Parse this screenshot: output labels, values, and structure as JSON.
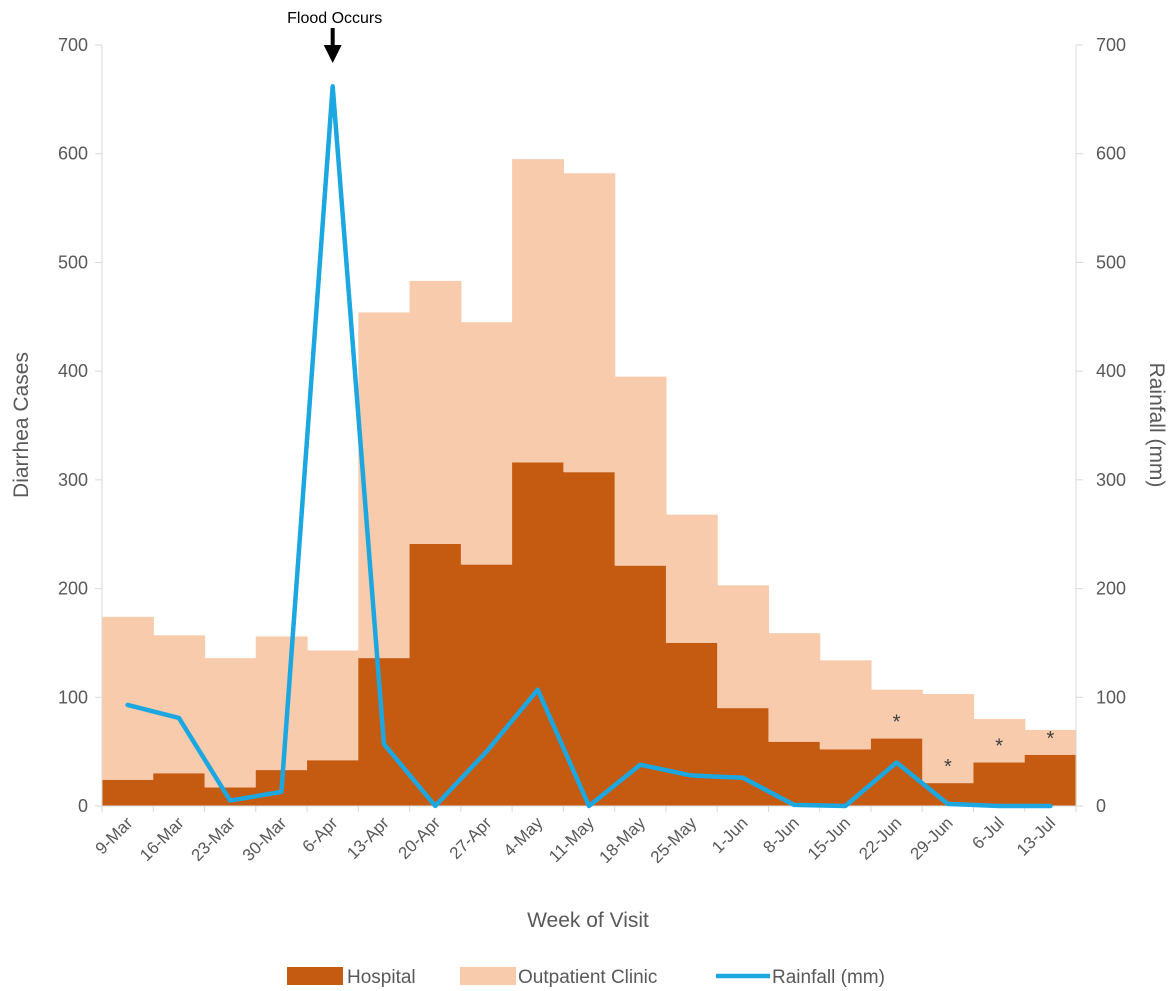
{
  "chart_data": {
    "type": "bar",
    "stacked": true,
    "categories": [
      "9-Mar",
      "16-Mar",
      "23-Mar",
      "30-Mar",
      "6-Apr",
      "13-Apr",
      "20-Apr",
      "27-Apr",
      "4-May",
      "11-May",
      "18-May",
      "25-May",
      "1-Jun",
      "8-Jun",
      "15-Jun",
      "22-Jun",
      "29-Jun",
      "6-Jul",
      "13-Jul"
    ],
    "series": [
      {
        "name": "Hospital",
        "type": "bar",
        "axis": "left",
        "color": "#C55A11",
        "values": [
          24,
          30,
          17,
          33,
          42,
          136,
          241,
          222,
          316,
          307,
          221,
          150,
          90,
          59,
          52,
          62,
          21,
          40,
          47
        ]
      },
      {
        "name": "Outpatient Clinic",
        "type": "bar",
        "axis": "left",
        "color": "#F8CBAD",
        "values": [
          150,
          127,
          119,
          123,
          101,
          318,
          242,
          223,
          279,
          275,
          174,
          118,
          113,
          100,
          82,
          45,
          82,
          40,
          23
        ]
      },
      {
        "name": "Rainfall (mm)",
        "type": "line",
        "axis": "right",
        "color": "#1CA7E0",
        "values": [
          93,
          81,
          5,
          13,
          662,
          57,
          0,
          50,
          107,
          0,
          38,
          28,
          26,
          1,
          0,
          40,
          2,
          0,
          0
        ]
      }
    ],
    "xlabel": "Week of Visit",
    "ylabel": "Diarrhea Cases",
    "y2label": "Rainfall (mm)",
    "ylim": [
      0,
      700
    ],
    "y2lim": [
      0,
      700
    ],
    "yticks": [
      0,
      100,
      200,
      300,
      400,
      500,
      600,
      700
    ],
    "annotation": {
      "text": "Flood Occurs",
      "category": "6-Apr"
    },
    "asterisk": {
      "symbol": "*",
      "categories": [
        "22-Jun",
        "29-Jun",
        "6-Jul",
        "13-Jul"
      ]
    },
    "legend_position": "bottom",
    "grid": false
  }
}
